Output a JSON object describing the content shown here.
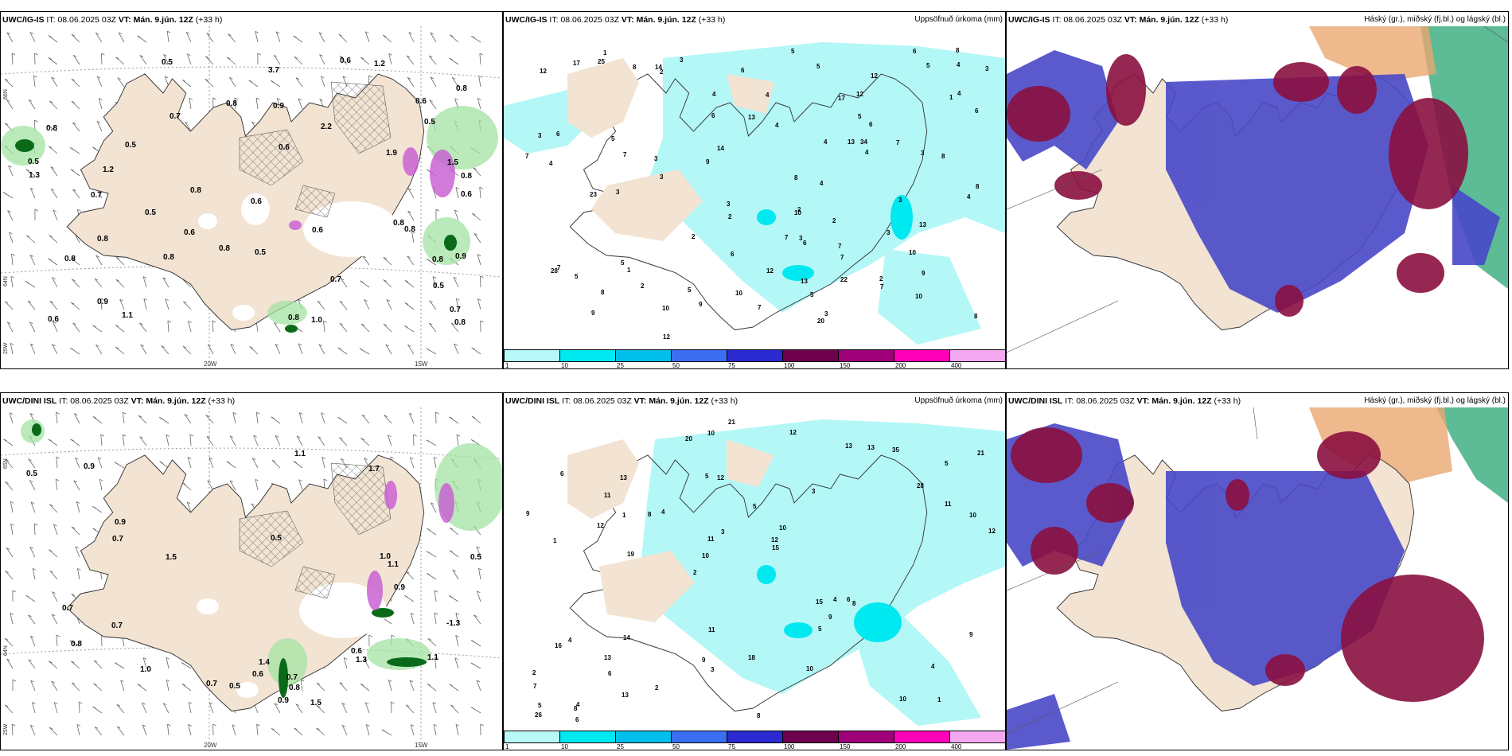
{
  "panels": {
    "ig_wind": {
      "model": "UWC/IG-IS",
      "it_label": "IT:",
      "it_value": "08.06.2025 03Z",
      "vt_label": "VT:",
      "vt_value": "Mán. 9.jún. 12Z",
      "lead": "(+33 h)",
      "labels": [
        "0.7",
        "1.5",
        "2.2",
        "0.8",
        "0.8",
        "0.9",
        "0.6",
        "0.6",
        "0.8",
        "0.6",
        "0.5",
        "0.8",
        "1.9",
        "0.8",
        "0.8",
        "0.6",
        "0.5",
        "0.5",
        "0.5",
        "0.8",
        "0.7",
        "0.9",
        "0.9",
        "0.8",
        "0.6",
        "1.2",
        "0.6",
        "0.7",
        "0.8",
        "0.8",
        "1.1",
        "0.8",
        "0.7",
        "3.7",
        "1.2",
        "1.3",
        "0.6",
        "0.6",
        "0.5",
        "0.8",
        "1.0",
        "0.8",
        "0.8",
        "0.5",
        "0.5"
      ]
    },
    "ig_precip": {
      "model": "UWC/IG-IS",
      "it_label": "IT:",
      "it_value": "08.06.2025 03Z",
      "vt_label": "VT:",
      "vt_value": "Mán. 9.jún. 12Z",
      "lead": "(+33 h)",
      "product": "Uppsöfnuð úrkoma (mm)",
      "labels": [
        "3",
        "2",
        "1",
        "5",
        "7",
        "5",
        "4",
        "3",
        "2",
        "2",
        "5",
        "3",
        "3",
        "3",
        "4",
        "6",
        "4",
        "5",
        "3",
        "3",
        "2",
        "6",
        "10",
        "7",
        "4",
        "6",
        "3",
        "7",
        "7",
        "4",
        "7",
        "8",
        "12",
        "5",
        "3",
        "10",
        "5",
        "6",
        "8",
        "7",
        "6",
        "8",
        "3",
        "9",
        "5",
        "13",
        "7",
        "6",
        "2",
        "4",
        "2",
        "4",
        "3",
        "5",
        "12",
        "8",
        "10",
        "14",
        "12",
        "28",
        "7",
        "20",
        "34",
        "23",
        "14",
        "9",
        "25",
        "13",
        "22",
        "9",
        "8",
        "4",
        "8",
        "4",
        "9",
        "10",
        "3",
        "5",
        "13",
        "7",
        "13",
        "17",
        "17",
        "12",
        "6",
        "4",
        "2",
        "1",
        "1",
        "8",
        "6",
        "12",
        "10"
      ]
    },
    "ig_cloud": {
      "model": "UWC/IG-IS",
      "it_label": "IT:",
      "it_value": "08.06.2025 03Z",
      "vt_label": "VT:",
      "vt_value": "Mán. 9.jún. 12Z",
      "lead": "(+33 h)",
      "product": "Háský (gr.), miðský (fj.bl.) og lágský (bl.)"
    },
    "dini_wind": {
      "model": "UWC/DINI ISL",
      "it_label": "IT:",
      "it_value": "08.06.2025 03Z",
      "vt_label": "VT:",
      "vt_value": "Mán. 9.jún. 12Z",
      "lead": "(+33 h)",
      "labels": [
        "0.7",
        "1.4",
        "0.5",
        "0.5",
        "0.5",
        "0.8",
        "0.6",
        "0.7",
        "1.0",
        "0.9",
        "0.7",
        "1.1",
        "0.5",
        "1.5",
        "1.7",
        "0.8",
        "0.6",
        "1.3",
        "-1.3",
        "1.1",
        "0.9",
        "0.9",
        "0.7",
        "1.5",
        "0.7",
        "1.0",
        "1.1",
        "0.9"
      ]
    },
    "dini_precip": {
      "model": "UWC/DINI ISL",
      "it_label": "IT:",
      "it_value": "08.06.2025 03Z",
      "vt_label": "VT:",
      "vt_value": "Mán. 9.jún. 12Z",
      "lead": "(+33 h)",
      "product": "Uppsöfnuð úrkoma (mm)",
      "labels": [
        "1",
        "1",
        "5",
        "2",
        "3",
        "4",
        "5",
        "5",
        "4",
        "4",
        "7",
        "6",
        "12",
        "10",
        "8",
        "6",
        "10",
        "12",
        "15",
        "11",
        "10",
        "9",
        "11",
        "13",
        "13",
        "14",
        "10",
        "4",
        "6",
        "8",
        "8",
        "12",
        "5",
        "13",
        "10",
        "12",
        "5",
        "3",
        "15",
        "16",
        "28",
        "21",
        "9",
        "10",
        "13",
        "6",
        "26",
        "18",
        "35",
        "21",
        "19",
        "9",
        "11",
        "13",
        "8",
        "12",
        "20",
        "3",
        "9",
        "11",
        "2",
        "4",
        "1",
        "2"
      ]
    },
    "dini_cloud": {
      "model": "UWC/DINI ISL",
      "it_label": "IT:",
      "it_value": "08.06.2025 03Z",
      "vt_label": "VT:",
      "vt_value": "Mán. 9.jún. 12Z",
      "lead": "(+33 h)",
      "product": "Háský (gr.), miðský (fj.bl.) og lágský (bl.)"
    }
  },
  "axes": {
    "lon_20": "20W",
    "lon_15": "15W",
    "lat_66": "66N",
    "lat_65": "65N",
    "lat_64": "64N",
    "lon_25": "25W"
  },
  "colorbar": {
    "labels": [
      "1",
      "10",
      "25",
      "50",
      "75",
      "100",
      "150",
      "200",
      "400"
    ],
    "colors": [
      "#b8f8f8",
      "#00e8f0",
      "#00bfea",
      "#3b6ef0",
      "#2a2ad0",
      "#6e004e",
      "#a0007a",
      "#ff00b8",
      "#f4a8f0"
    ]
  },
  "colors": {
    "land": "#f2e3d3",
    "sea": "#ffffff",
    "precip_light": "#b4f7f7",
    "high_cloud": "#4bb48a",
    "mid_cloud": "#8a1040",
    "low_cloud": "#4848c8"
  }
}
